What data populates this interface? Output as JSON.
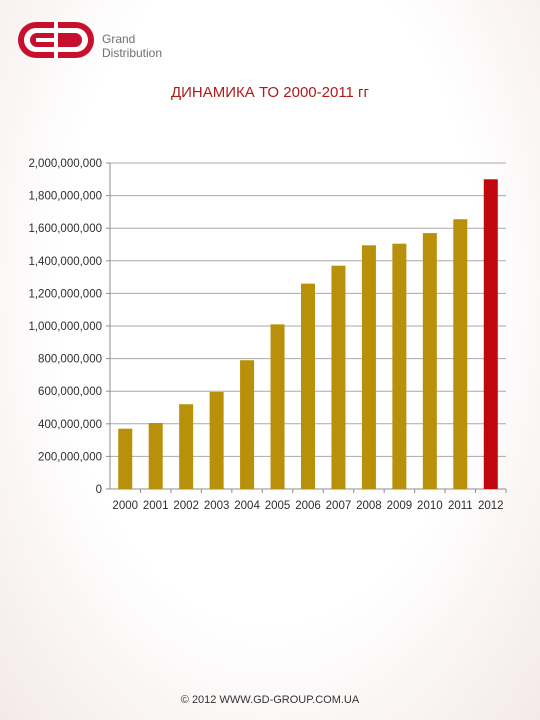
{
  "brand": {
    "line1": "Grand",
    "line2": "Distribution",
    "accent": "#c8102e"
  },
  "chart_data": {
    "type": "bar",
    "title": "ДИНАМИКА ТО 2000-2011 гг",
    "categories": [
      "2000",
      "2001",
      "2002",
      "2003",
      "2004",
      "2005",
      "2006",
      "2007",
      "2008",
      "2009",
      "2010",
      "2011",
      "2012"
    ],
    "values": [
      370000,
      405000,
      520000,
      595000,
      790000,
      1010000,
      1260000,
      1370000,
      1495000,
      1505000,
      1570000,
      1655000,
      1900000
    ],
    "ylim": [
      0,
      2000000
    ],
    "y_ticks": [
      {
        "value": 0,
        "label": "0"
      },
      {
        "value": 200000,
        "label": "200,000,000"
      },
      {
        "value": 400000,
        "label": "400,000,000"
      },
      {
        "value": 600000,
        "label": "600,000,000"
      },
      {
        "value": 800000,
        "label": "800,000,000"
      },
      {
        "value": 1000000,
        "label": "1,000,000,000"
      },
      {
        "value": 1200000,
        "label": "1,200,000,000"
      },
      {
        "value": 1400000,
        "label": "1,400,000,000"
      },
      {
        "value": 1600000,
        "label": "1,600,000,000"
      },
      {
        "value": 1800000,
        "label": "1,800,000,000"
      },
      {
        "value": 2000000,
        "label": "2,000,000,000"
      }
    ],
    "grid": true,
    "bar_color": "#b8900a",
    "highlight_color": "#c0070d",
    "highlight_category": "2012"
  },
  "footer": "© 2012 WWW.GD-GROUP.COM.UA"
}
